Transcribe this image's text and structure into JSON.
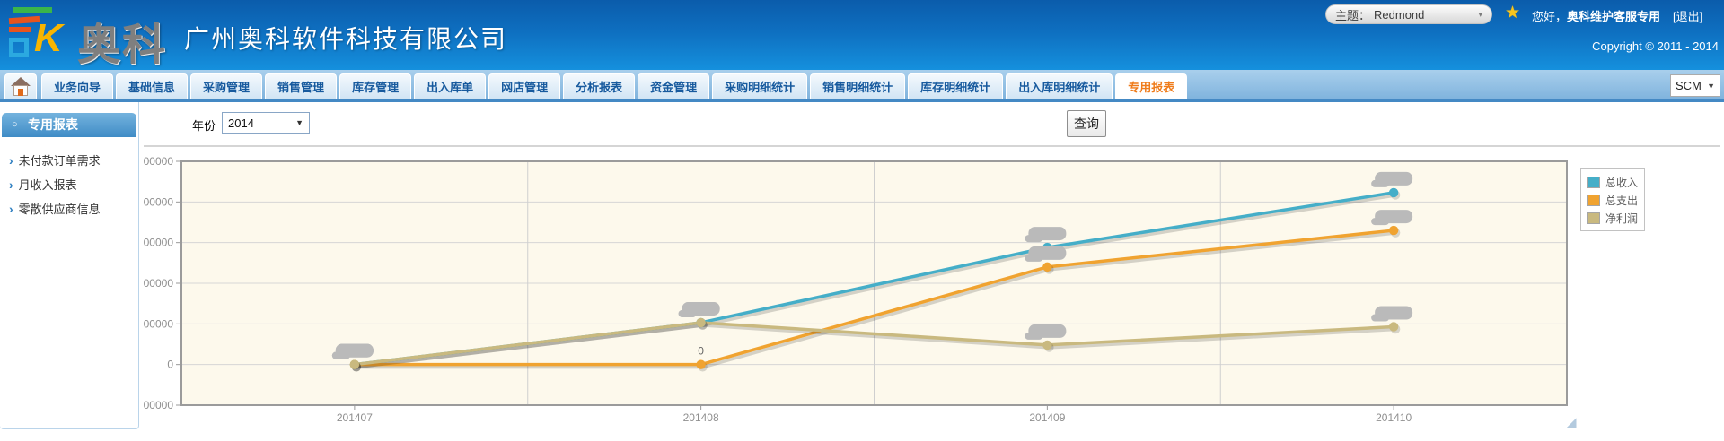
{
  "header": {
    "logo_text": "奥科",
    "company_name": "广州奥科软件科技有限公司",
    "theme_label": "主题：",
    "theme_value": "Redmond",
    "greeting_prefix": "您好，",
    "username": "奥科维护客服专用",
    "logout_label": "[退出]",
    "copyright": "Copyright © 2011 - 2014"
  },
  "nav": {
    "tabs": [
      "业务向导",
      "基础信息",
      "采购管理",
      "销售管理",
      "库存管理",
      "出入库单",
      "网店管理",
      "分析报表",
      "资金管理",
      "采购明细统计",
      "销售明细统计",
      "库存明细统计",
      "出入库明细统计",
      "专用报表"
    ],
    "active_tab": "专用报表",
    "scm_value": "SCM"
  },
  "sidebar": {
    "title": "专用报表",
    "items": [
      "未付款订单需求",
      "月收入报表",
      "零散供应商信息"
    ]
  },
  "toolbar": {
    "year_label": "年份",
    "year_value": "2014",
    "query_button": "查询"
  },
  "icons": {
    "dropdown_arrow": "▼",
    "small_dropdown_arrow": "▾",
    "star": "★",
    "sidebar_bullet": "○",
    "sidebar_arrow": "›",
    "resize_handle": "◢"
  },
  "chart_data": {
    "type": "line",
    "categories": [
      "201407",
      "201408",
      "201409",
      "201410"
    ],
    "series": [
      {
        "name": "总收入",
        "color": "#45AEC8",
        "values": [
          0,
          103000,
          288000,
          423000
        ]
      },
      {
        "name": "总支出",
        "color": "#F0A330",
        "values": [
          0,
          0,
          240000,
          330000
        ]
      },
      {
        "name": "净利润",
        "color": "#C9B97F",
        "values": [
          0,
          103000,
          48000,
          93000
        ]
      }
    ],
    "ylim": [
      -100000,
      500000
    ],
    "ytick_step": 100000,
    "grid": true,
    "legend_position": "right",
    "plot_background": "#FDF9EC",
    "visible_point_labels": [
      {
        "series": "总支出",
        "category": "201408",
        "text": "0"
      }
    ],
    "redacted_point_labels": true
  }
}
